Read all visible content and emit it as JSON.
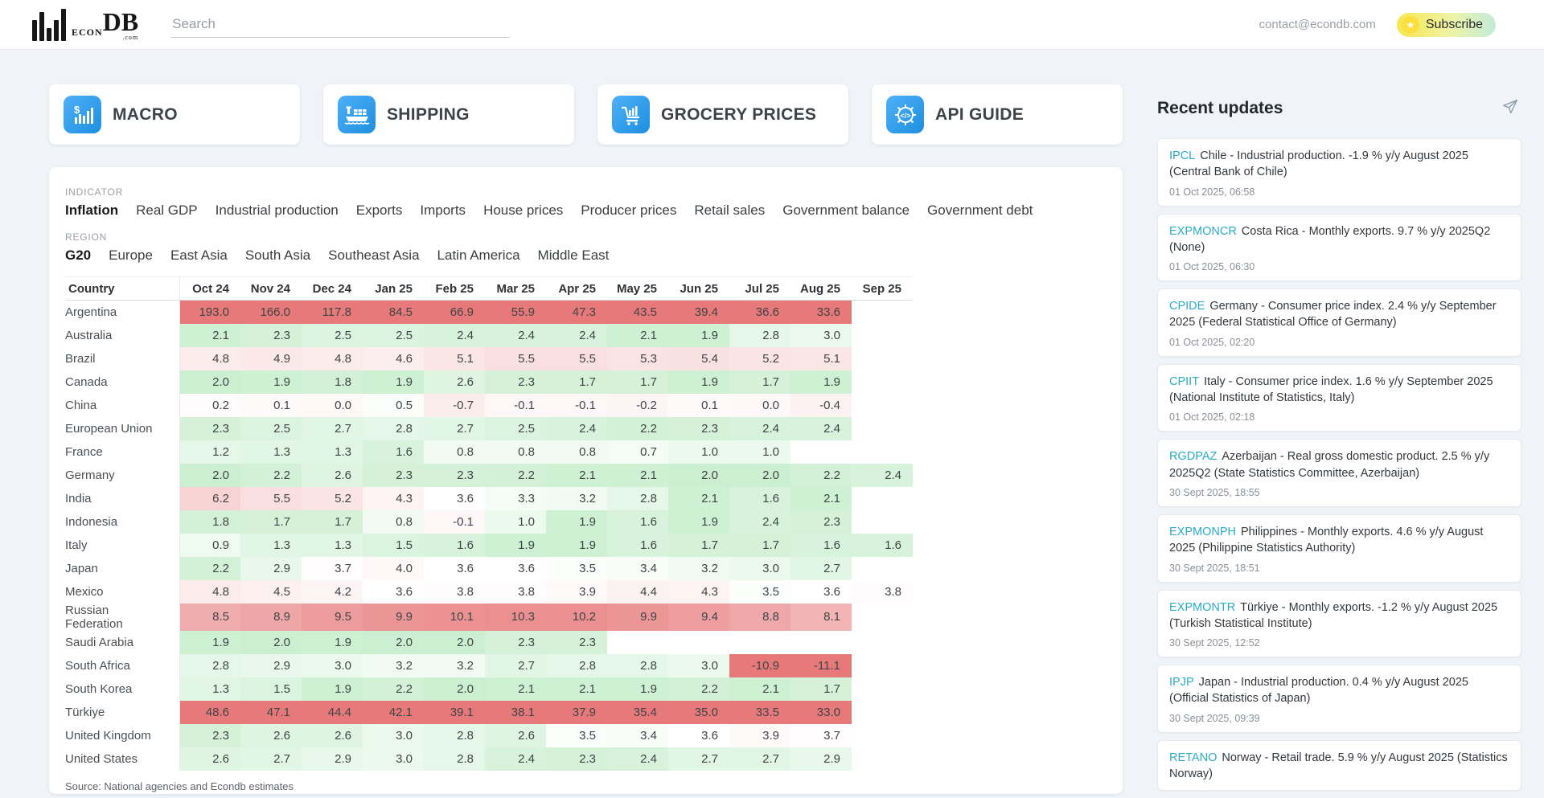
{
  "header": {
    "brand_small": "econ",
    "brand_big": "DB",
    "brand_suffix": ".com",
    "search_placeholder": "Search",
    "contact_email": "contact@econdb.com",
    "subscribe_label": "Subscribe",
    "star_glyph": "★"
  },
  "nav_cards": [
    {
      "label": "MACRO",
      "icon": "dollar-bar-chart-icon"
    },
    {
      "label": "SHIPPING",
      "icon": "container-ship-icon"
    },
    {
      "label": "GROCERY PRICES",
      "icon": "shopping-cart-icon"
    },
    {
      "label": "API GUIDE",
      "icon": "gear-code-icon"
    }
  ],
  "filters": {
    "indicator_label": "INDICATOR",
    "active_indicator": "Inflation",
    "indicators": [
      "Inflation",
      "Real GDP",
      "Industrial production",
      "Exports",
      "Imports",
      "House prices",
      "Producer prices",
      "Retail sales",
      "Government balance",
      "Government debt"
    ],
    "region_label": "REGION",
    "active_region": "G20",
    "regions": [
      "G20",
      "Europe",
      "East Asia",
      "South Asia",
      "Southeast Asia",
      "Latin America",
      "Middle East"
    ]
  },
  "inflation_table": {
    "country_header": "Country",
    "months": [
      "Oct 24",
      "Nov 24",
      "Dec 24",
      "Jan 25",
      "Feb 25",
      "Mar 25",
      "Apr 25",
      "May 25",
      "Jun 25",
      "Jul 25",
      "Aug 25",
      "Sep 25"
    ],
    "rows": [
      {
        "country": "Argentina",
        "values": [
          193.0,
          166.0,
          117.8,
          84.5,
          66.9,
          55.9,
          47.3,
          43.5,
          39.4,
          36.6,
          33.6,
          null
        ]
      },
      {
        "country": "Australia",
        "values": [
          2.1,
          2.3,
          2.5,
          2.5,
          2.4,
          2.4,
          2.4,
          2.1,
          1.9,
          2.8,
          3.0,
          null
        ]
      },
      {
        "country": "Brazil",
        "values": [
          4.8,
          4.9,
          4.8,
          4.6,
          5.1,
          5.5,
          5.5,
          5.3,
          5.4,
          5.2,
          5.1,
          null
        ]
      },
      {
        "country": "Canada",
        "values": [
          2.0,
          1.9,
          1.8,
          1.9,
          2.6,
          2.3,
          1.7,
          1.7,
          1.9,
          1.7,
          1.9,
          null
        ]
      },
      {
        "country": "China",
        "values": [
          0.2,
          0.1,
          0.0,
          0.5,
          -0.7,
          -0.1,
          -0.1,
          -0.2,
          0.1,
          0.0,
          -0.4,
          null
        ]
      },
      {
        "country": "European Union",
        "values": [
          2.3,
          2.5,
          2.7,
          2.8,
          2.7,
          2.5,
          2.4,
          2.2,
          2.3,
          2.4,
          2.4,
          null
        ]
      },
      {
        "country": "France",
        "values": [
          1.2,
          1.3,
          1.3,
          1.6,
          0.8,
          0.8,
          0.8,
          0.7,
          1.0,
          1.0,
          null,
          null
        ]
      },
      {
        "country": "Germany",
        "values": [
          2.0,
          2.2,
          2.6,
          2.3,
          2.3,
          2.2,
          2.1,
          2.1,
          2.0,
          2.0,
          2.2,
          2.4
        ]
      },
      {
        "country": "India",
        "values": [
          6.2,
          5.5,
          5.2,
          4.3,
          3.6,
          3.3,
          3.2,
          2.8,
          2.1,
          1.6,
          2.1,
          null
        ]
      },
      {
        "country": "Indonesia",
        "values": [
          1.8,
          1.7,
          1.7,
          0.8,
          -0.1,
          1.0,
          1.9,
          1.6,
          1.9,
          2.4,
          2.3,
          null
        ]
      },
      {
        "country": "Italy",
        "values": [
          0.9,
          1.3,
          1.3,
          1.5,
          1.6,
          1.9,
          1.9,
          1.6,
          1.7,
          1.7,
          1.6,
          1.6
        ]
      },
      {
        "country": "Japan",
        "values": [
          2.2,
          2.9,
          3.7,
          4.0,
          3.6,
          3.6,
          3.5,
          3.4,
          3.2,
          3.0,
          2.7,
          null
        ]
      },
      {
        "country": "Mexico",
        "values": [
          4.8,
          4.5,
          4.2,
          3.6,
          3.8,
          3.8,
          3.9,
          4.4,
          4.3,
          3.5,
          3.6,
          3.8
        ]
      },
      {
        "country": "Russian Federation",
        "values": [
          8.5,
          8.9,
          9.5,
          9.9,
          10.1,
          10.3,
          10.2,
          9.9,
          9.4,
          8.8,
          8.1,
          null
        ]
      },
      {
        "country": "Saudi Arabia",
        "values": [
          1.9,
          2.0,
          1.9,
          2.0,
          2.0,
          2.3,
          2.3,
          null,
          null,
          null,
          null,
          null
        ]
      },
      {
        "country": "South Africa",
        "values": [
          2.8,
          2.9,
          3.0,
          3.2,
          3.2,
          2.7,
          2.8,
          2.8,
          3.0,
          -10.9,
          -11.1,
          null
        ]
      },
      {
        "country": "South Korea",
        "values": [
          1.3,
          1.5,
          1.9,
          2.2,
          2.0,
          2.1,
          2.1,
          1.9,
          2.2,
          2.1,
          1.7,
          null
        ]
      },
      {
        "country": "Türkiye",
        "values": [
          48.6,
          47.1,
          44.4,
          42.1,
          39.1,
          38.1,
          37.9,
          35.4,
          35.0,
          33.5,
          33.0,
          null
        ]
      },
      {
        "country": "United Kingdom",
        "values": [
          2.3,
          2.6,
          2.6,
          3.0,
          2.8,
          2.6,
          3.5,
          3.4,
          3.6,
          3.9,
          3.7,
          null
        ]
      },
      {
        "country": "United States",
        "values": [
          2.6,
          2.7,
          2.9,
          3.0,
          2.8,
          2.4,
          2.3,
          2.4,
          2.7,
          2.7,
          2.9,
          null
        ]
      }
    ],
    "source_note": "Source: National agencies and Econdb estimates"
  },
  "sidebar": {
    "title": "Recent updates",
    "send_icon": "paper-plane-icon",
    "items": [
      {
        "code": "IPCL",
        "text": "Chile - Industrial production. -1.9 % y/y August 2025 (Central Bank of Chile)",
        "timestamp": "01 Oct 2025, 06:58"
      },
      {
        "code": "EXPMONCR",
        "text": "Costa Rica - Monthly exports. 9.7 % y/y 2025Q2 (None)",
        "timestamp": "01 Oct 2025, 06:30"
      },
      {
        "code": "CPIDE",
        "text": "Germany - Consumer price index. 2.4 % y/y September 2025 (Federal Statistical Office of Germany)",
        "timestamp": "01 Oct 2025, 02:20"
      },
      {
        "code": "CPIIT",
        "text": "Italy - Consumer price index. 1.6 % y/y September 2025 (National Institute of Statistics, Italy)",
        "timestamp": "01 Oct 2025, 02:18"
      },
      {
        "code": "RGDPAZ",
        "text": "Azerbaijan - Real gross domestic product. 2.5 % y/y 2025Q2 (State Statistics Committee, Azerbaijan)",
        "timestamp": "30 Sept 2025, 18:55"
      },
      {
        "code": "EXPMONPH",
        "text": "Philippines - Monthly exports. 4.6 % y/y August 2025 (Philippine Statistics Authority)",
        "timestamp": "30 Sept 2025, 18:51"
      },
      {
        "code": "EXPMONTR",
        "text": "Türkiye - Monthly exports. -1.2 % y/y August 2025 (Turkish Statistical Institute)",
        "timestamp": "30 Sept 2025, 12:52"
      },
      {
        "code": "IPJP",
        "text": "Japan - Industrial production. 0.4 % y/y August 2025 (Official Statistics of Japan)",
        "timestamp": "30 Sept 2025, 09:39"
      },
      {
        "code": "RETANO",
        "text": "Norway - Retail trade. 5.9 % y/y August 2025 (Statistics Norway)",
        "timestamp": ""
      }
    ]
  },
  "colors": {
    "page_bg": "#f0f4f8",
    "accent_blue": "#2196f3",
    "link_teal": "#2aabc8",
    "heat_green_max": "#cbefd0",
    "heat_red_max": "#e7797a",
    "heat_neutral": "#ffffff"
  }
}
